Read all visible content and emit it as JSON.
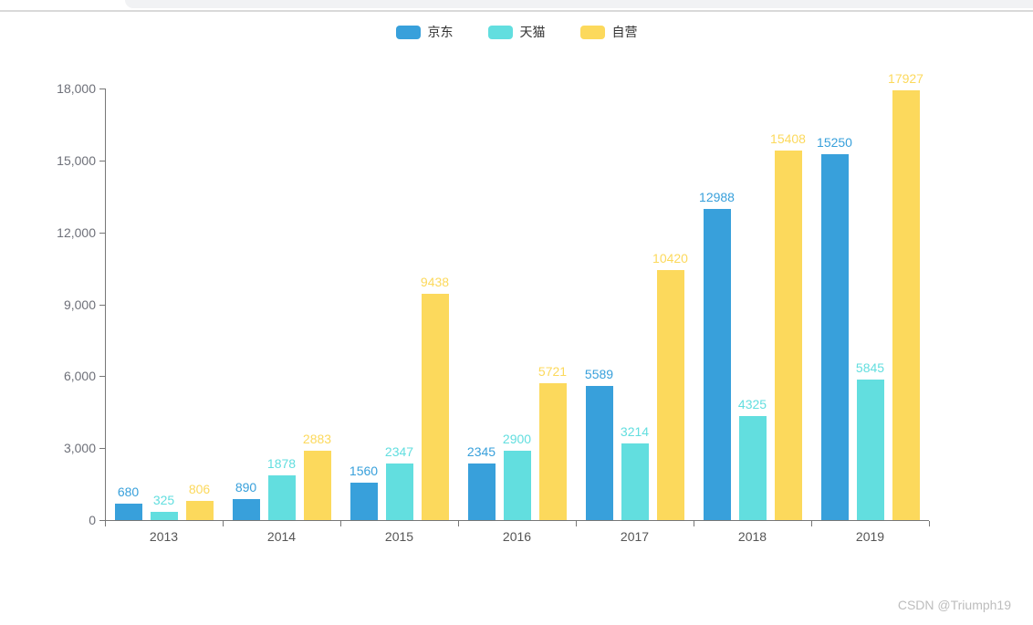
{
  "page": {
    "watermark": "CSDN @Triumph19"
  },
  "chart_data": {
    "type": "bar",
    "title": "",
    "xlabel": "",
    "ylabel": "",
    "categories": [
      "2013",
      "2014",
      "2015",
      "2016",
      "2017",
      "2018",
      "2019"
    ],
    "series": [
      {
        "name": "京东",
        "color": "#38A0DB",
        "values": [
          680,
          890,
          1560,
          2345,
          5589,
          12988,
          15250
        ]
      },
      {
        "name": "天猫",
        "color": "#62DEDF",
        "values": [
          325,
          1878,
          2347,
          2900,
          3214,
          4325,
          5845
        ]
      },
      {
        "name": "自营",
        "color": "#FCD95C",
        "values": [
          806,
          2883,
          9438,
          5721,
          10420,
          15408,
          17927
        ]
      }
    ],
    "ylim": [
      0,
      18000
    ],
    "y_ticks": [
      "0",
      "3,000",
      "6,000",
      "9,000",
      "12,000",
      "15,000",
      "18,000"
    ],
    "grid": false,
    "legend_position": "top",
    "bar_labels": true
  }
}
